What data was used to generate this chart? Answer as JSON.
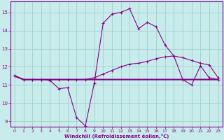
{
  "xlabel": "Windchill (Refroidissement éolien,°C)",
  "bg_color": "#c8ecec",
  "grid_color": "#a0d0c8",
  "line_color": "#880088",
  "xlim": [
    -0.5,
    23.5
  ],
  "ylim": [
    8.7,
    15.6
  ],
  "yticks": [
    9,
    10,
    11,
    12,
    13,
    14,
    15
  ],
  "xticks": [
    0,
    1,
    2,
    3,
    4,
    5,
    6,
    7,
    8,
    9,
    10,
    11,
    12,
    13,
    14,
    15,
    16,
    17,
    18,
    19,
    20,
    21,
    22,
    23
  ],
  "series1_x": [
    0,
    1,
    2,
    3,
    4,
    5,
    6,
    7,
    8,
    9,
    10,
    11,
    12,
    13,
    14,
    15,
    16,
    17,
    18,
    19,
    20,
    21,
    22,
    23
  ],
  "series1_y": [
    11.5,
    11.3,
    11.3,
    11.3,
    11.25,
    10.8,
    10.85,
    9.2,
    8.75,
    11.1,
    14.4,
    14.9,
    15.0,
    15.2,
    14.1,
    14.45,
    14.2,
    13.2,
    12.6,
    11.3,
    11.0,
    12.05,
    11.4,
    11.3
  ],
  "series2_x": [
    0,
    1,
    2,
    3,
    4,
    5,
    6,
    7,
    8,
    9,
    10,
    11,
    12,
    13,
    14,
    15,
    16,
    17,
    18,
    19,
    20,
    21,
    22,
    23
  ],
  "series2_y": [
    11.5,
    11.3,
    11.3,
    11.3,
    11.3,
    11.3,
    11.3,
    11.3,
    11.3,
    11.3,
    11.3,
    11.3,
    11.3,
    11.3,
    11.3,
    11.3,
    11.3,
    11.3,
    11.3,
    11.3,
    11.3,
    11.3,
    11.3,
    11.3
  ],
  "series3_x": [
    0,
    1,
    2,
    3,
    4,
    5,
    6,
    7,
    8,
    9,
    10,
    11,
    12,
    13,
    14,
    15,
    16,
    17,
    18,
    19,
    20,
    21,
    22,
    23
  ],
  "series3_y": [
    11.5,
    11.3,
    11.3,
    11.3,
    11.3,
    11.3,
    11.3,
    11.3,
    11.3,
    11.4,
    11.6,
    11.8,
    12.0,
    12.15,
    12.2,
    12.3,
    12.45,
    12.55,
    12.6,
    12.5,
    12.35,
    12.2,
    12.1,
    11.4
  ]
}
